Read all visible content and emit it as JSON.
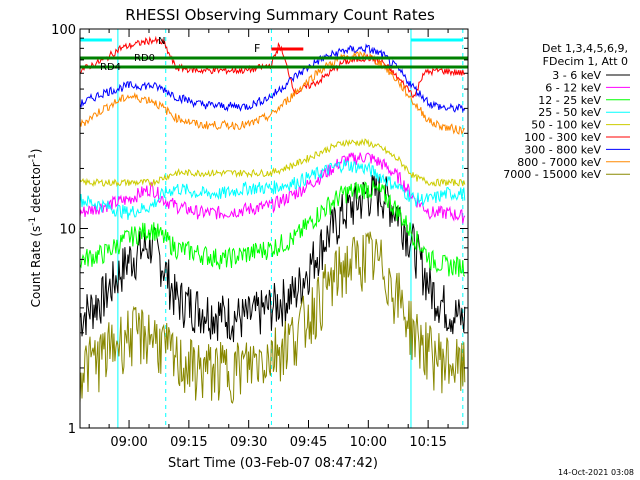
{
  "chart_data": {
    "type": "line",
    "title": "RHESSI Observing Summary Count Rates",
    "xlabel": "Start Time (03-Feb-07 08:47:42)",
    "ylabel_main": "Count Rate (s",
    "ylabel_sup": "-1",
    "ylabel_tail": " detector",
    "ylabel_end": ")",
    "y_scale": "log",
    "ylim": [
      1,
      100
    ],
    "y_ticks": [
      "1",
      "10",
      "100"
    ],
    "x_range": [
      "08:47:42",
      "10:25:00"
    ],
    "x_ticks": [
      "09:00",
      "09:15",
      "09:30",
      "09:45",
      "10:00",
      "10:15"
    ],
    "grid": false,
    "legend_position": "right",
    "legend_header": [
      "Det 1,3,4,5,6,9,",
      "FDecim 1, Att 0"
    ],
    "series": [
      {
        "name": "3 - 6 keV",
        "color": "#000000",
        "values": [
          [
            0,
            3.6
          ],
          [
            6,
            4.6
          ],
          [
            12,
            7.0
          ],
          [
            18,
            8.5
          ],
          [
            21,
            6.5
          ],
          [
            24,
            4.5
          ],
          [
            30,
            4.0
          ],
          [
            36,
            3.7
          ],
          [
            42,
            3.6
          ],
          [
            48,
            4.1
          ],
          [
            54,
            4.8
          ],
          [
            60,
            8.0
          ],
          [
            66,
            12
          ],
          [
            72,
            15
          ],
          [
            76,
            15
          ],
          [
            80,
            12
          ],
          [
            84,
            8.0
          ],
          [
            88,
            5.0
          ],
          [
            92,
            4.0
          ],
          [
            96,
            3.5
          ]
        ]
      },
      {
        "name": "6 - 12 keV",
        "color": "#ff00ff",
        "values": [
          [
            0,
            12
          ],
          [
            6,
            13
          ],
          [
            12,
            14
          ],
          [
            18,
            16
          ],
          [
            21,
            14
          ],
          [
            24,
            13
          ],
          [
            30,
            12
          ],
          [
            36,
            12
          ],
          [
            42,
            12.5
          ],
          [
            48,
            13
          ],
          [
            54,
            15
          ],
          [
            60,
            18
          ],
          [
            66,
            22
          ],
          [
            72,
            23
          ],
          [
            76,
            21
          ],
          [
            80,
            18
          ],
          [
            84,
            14
          ],
          [
            88,
            12
          ],
          [
            92,
            12
          ],
          [
            96,
            11.5
          ]
        ]
      },
      {
        "name": "12 - 25 keV",
        "color": "#00ff00",
        "values": [
          [
            0,
            7.0
          ],
          [
            6,
            7.5
          ],
          [
            12,
            9.0
          ],
          [
            18,
            10
          ],
          [
            21,
            9.0
          ],
          [
            24,
            8.0
          ],
          [
            30,
            7.5
          ],
          [
            36,
            7.0
          ],
          [
            42,
            7.5
          ],
          [
            48,
            8.0
          ],
          [
            54,
            9.0
          ],
          [
            60,
            12
          ],
          [
            66,
            15
          ],
          [
            72,
            16
          ],
          [
            76,
            15
          ],
          [
            80,
            12
          ],
          [
            84,
            9.0
          ],
          [
            88,
            7.0
          ],
          [
            92,
            6.5
          ],
          [
            96,
            6.5
          ]
        ]
      },
      {
        "name": "25 - 50 keV",
        "color": "#00ffff",
        "values": [
          [
            0,
            14
          ],
          [
            6,
            13
          ],
          [
            12,
            12
          ],
          [
            18,
            13
          ],
          [
            21,
            15
          ],
          [
            24,
            16
          ],
          [
            30,
            15
          ],
          [
            36,
            15
          ],
          [
            42,
            16
          ],
          [
            48,
            16
          ],
          [
            54,
            17
          ],
          [
            60,
            19
          ],
          [
            66,
            21
          ],
          [
            72,
            20
          ],
          [
            76,
            18
          ],
          [
            80,
            16
          ],
          [
            84,
            14
          ],
          [
            88,
            14
          ],
          [
            92,
            15
          ],
          [
            96,
            15
          ]
        ]
      },
      {
        "name": "50 - 100 keV",
        "color": "#cccc00",
        "values": [
          [
            0,
            17
          ],
          [
            6,
            17
          ],
          [
            12,
            17
          ],
          [
            18,
            17
          ],
          [
            21,
            18
          ],
          [
            24,
            19
          ],
          [
            30,
            19
          ],
          [
            36,
            19
          ],
          [
            42,
            19
          ],
          [
            48,
            19
          ],
          [
            54,
            21
          ],
          [
            60,
            24
          ],
          [
            66,
            27
          ],
          [
            72,
            27
          ],
          [
            76,
            25
          ],
          [
            80,
            22
          ],
          [
            84,
            18
          ],
          [
            88,
            17
          ],
          [
            92,
            17
          ],
          [
            96,
            17
          ]
        ]
      },
      {
        "name": "100 - 300 keV",
        "color": "#ff0000",
        "values": [
          [
            0,
            62
          ],
          [
            6,
            70
          ],
          [
            10,
            80
          ],
          [
            18,
            88
          ],
          [
            21,
            85
          ],
          [
            24,
            64
          ],
          [
            30,
            62
          ],
          [
            36,
            62
          ],
          [
            42,
            62
          ],
          [
            48,
            66
          ],
          [
            50,
            84
          ],
          [
            54,
            48
          ],
          [
            60,
            55
          ],
          [
            66,
            68
          ],
          [
            72,
            72
          ],
          [
            76,
            68
          ],
          [
            80,
            56
          ],
          [
            84,
            46
          ],
          [
            86,
            60
          ],
          [
            90,
            62
          ],
          [
            96,
            60
          ]
        ]
      },
      {
        "name": "300 - 800 keV",
        "color": "#0000ff",
        "values": [
          [
            0,
            42
          ],
          [
            6,
            48
          ],
          [
            12,
            52
          ],
          [
            18,
            52
          ],
          [
            21,
            50
          ],
          [
            24,
            46
          ],
          [
            30,
            42
          ],
          [
            36,
            41
          ],
          [
            42,
            41
          ],
          [
            48,
            46
          ],
          [
            54,
            58
          ],
          [
            60,
            70
          ],
          [
            66,
            78
          ],
          [
            72,
            80
          ],
          [
            76,
            74
          ],
          [
            80,
            62
          ],
          [
            84,
            50
          ],
          [
            88,
            42
          ],
          [
            92,
            40
          ],
          [
            96,
            40
          ]
        ]
      },
      {
        "name": "800 - 7000 keV",
        "color": "#ff8800",
        "values": [
          [
            0,
            33
          ],
          [
            6,
            40
          ],
          [
            12,
            46
          ],
          [
            18,
            44
          ],
          [
            21,
            40
          ],
          [
            24,
            36
          ],
          [
            30,
            33
          ],
          [
            36,
            33
          ],
          [
            42,
            33
          ],
          [
            48,
            37
          ],
          [
            54,
            48
          ],
          [
            60,
            62
          ],
          [
            66,
            72
          ],
          [
            72,
            74
          ],
          [
            76,
            66
          ],
          [
            80,
            54
          ],
          [
            84,
            42
          ],
          [
            88,
            34
          ],
          [
            92,
            32
          ],
          [
            96,
            31
          ]
        ]
      },
      {
        "name": "7000 - 15000 keV",
        "color": "#888800",
        "values": [
          [
            0,
            2.0
          ],
          [
            6,
            2.4
          ],
          [
            12,
            3.0
          ],
          [
            18,
            3.0
          ],
          [
            21,
            2.6
          ],
          [
            24,
            2.2
          ],
          [
            30,
            2.0
          ],
          [
            36,
            2.0
          ],
          [
            42,
            2.1
          ],
          [
            48,
            2.4
          ],
          [
            54,
            3.0
          ],
          [
            60,
            4.5
          ],
          [
            66,
            6.5
          ],
          [
            72,
            7.5
          ],
          [
            76,
            6.5
          ],
          [
            80,
            4.5
          ],
          [
            84,
            3.0
          ],
          [
            88,
            2.4
          ],
          [
            92,
            2.2
          ],
          [
            96,
            2.0
          ]
        ]
      }
    ],
    "annotations": {
      "N_label": "N",
      "F_label": "F",
      "RD0_label": "RD0",
      "RD4_label": "RD4",
      "cyan_bars": [
        [
          0,
          8
        ],
        [
          83,
          96
        ]
      ],
      "red_bar": [
        48,
        56
      ],
      "green_levels": [
        68,
        60
      ],
      "night_lines": [
        9.5,
        83
      ],
      "dashed_lines": [
        21.5,
        48
      ]
    },
    "footer_timestamp": "14-Oct-2021 03:08"
  }
}
